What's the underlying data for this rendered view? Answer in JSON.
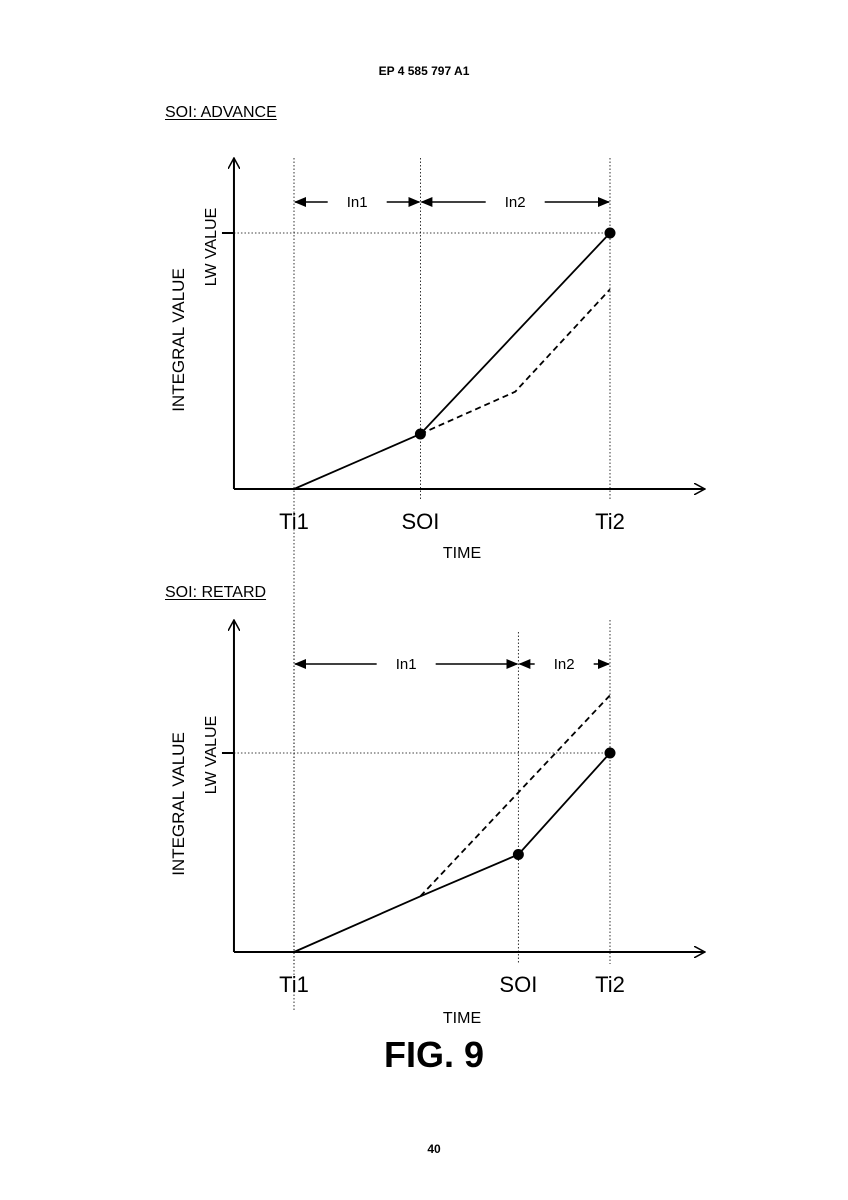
{
  "document": {
    "header": "EP 4 585 797 A1",
    "figure_caption": "FIG. 9",
    "page_number": "40"
  },
  "chart_data": [
    {
      "type": "line",
      "title": "SOI: ADVANCE",
      "xlabel": "TIME",
      "ylabel": "INTEGRAL VALUE",
      "x_ticks": [
        {
          "label": "Ti1",
          "x": 0
        },
        {
          "label": "SOI",
          "x": 0.4
        },
        {
          "label": "Ti2",
          "x": 1
        }
      ],
      "y_ticks": [
        {
          "label": "LW VALUE",
          "y": 1
        }
      ],
      "intervals": [
        {
          "label": "In1",
          "from": 0,
          "to": 0.4
        },
        {
          "label": "In2",
          "from": 0.4,
          "to": 1
        }
      ],
      "series": [
        {
          "style": "solid",
          "points": [
            [
              0,
              0
            ],
            [
              0.4,
              0.215
            ],
            [
              1,
              1
            ]
          ]
        },
        {
          "style": "dashed",
          "points": [
            [
              0.4,
              0.215
            ],
            [
              0.7,
              0.38
            ],
            [
              1,
              0.78
            ]
          ]
        }
      ],
      "markers": [
        [
          0.4,
          0.215
        ],
        [
          1,
          1
        ]
      ],
      "xlim": [
        -0.19,
        1.3
      ],
      "ylim": [
        0,
        1.3
      ]
    },
    {
      "type": "line",
      "title": "SOI: RETARD",
      "xlabel": "TIME",
      "ylabel": "INTEGRAL VALUE",
      "x_ticks": [
        {
          "label": "Ti1",
          "x": 0
        },
        {
          "label": "SOI",
          "x": 0.71
        },
        {
          "label": "Ti2",
          "x": 1
        }
      ],
      "y_ticks": [
        {
          "label": "LW VALUE",
          "y": 1
        }
      ],
      "intervals": [
        {
          "label": "In1",
          "from": 0,
          "to": 0.71
        },
        {
          "label": "In2",
          "from": 0.71,
          "to": 1
        }
      ],
      "series": [
        {
          "style": "solid",
          "points": [
            [
              0,
              0
            ],
            [
              0.4,
              0.28
            ],
            [
              0.71,
              0.49
            ],
            [
              1,
              1
            ]
          ]
        },
        {
          "style": "dashed",
          "points": [
            [
              0.4,
              0.28
            ],
            [
              1,
              1.29
            ]
          ]
        }
      ],
      "markers": [
        [
          0.71,
          0.49
        ],
        [
          1,
          1
        ]
      ],
      "xlim": [
        -0.19,
        1.3
      ],
      "ylim": [
        0,
        1.65
      ]
    }
  ]
}
